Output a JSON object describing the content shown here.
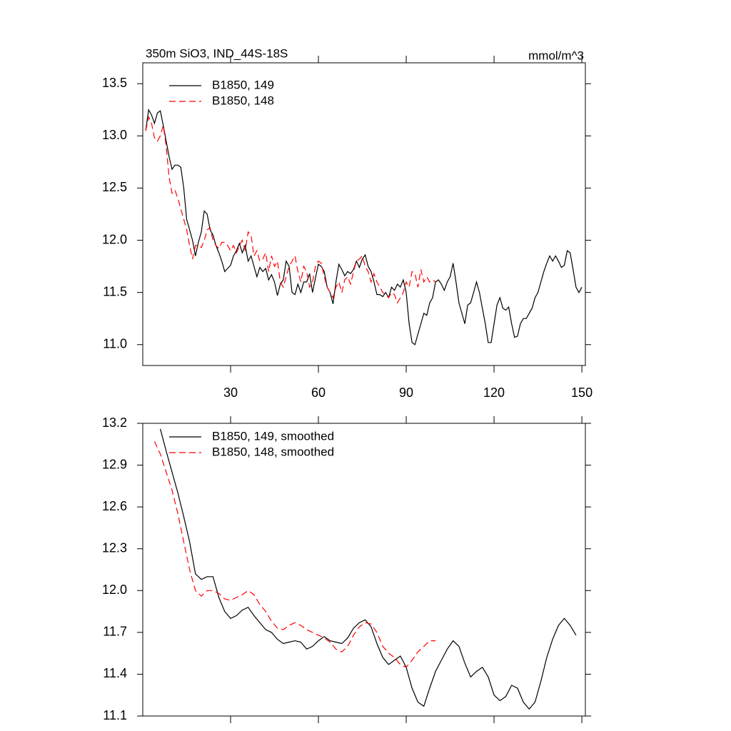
{
  "chart_data": [
    {
      "type": "line",
      "title": "350m SiO3, IND_44S-18S",
      "units": "mmol/m^3",
      "x": [
        1,
        2,
        3,
        4,
        5,
        6,
        7,
        8,
        9,
        10,
        11,
        12,
        13,
        14,
        15,
        16,
        17,
        18,
        19,
        20,
        21,
        22,
        23,
        24,
        25,
        26,
        27,
        28,
        29,
        30,
        31,
        32,
        33,
        34,
        35,
        36,
        37,
        38,
        39,
        40,
        41,
        42,
        43,
        44,
        45,
        46,
        47,
        48,
        49,
        50,
        51,
        52,
        53,
        54,
        55,
        56,
        57,
        58,
        59,
        60,
        61,
        62,
        63,
        64,
        65,
        66,
        67,
        68,
        69,
        70,
        71,
        72,
        73,
        74,
        75,
        76,
        77,
        78,
        79,
        80,
        81,
        82,
        83,
        84,
        85,
        86,
        87,
        88,
        89,
        90,
        91,
        92,
        93,
        94,
        95,
        96,
        97,
        98,
        99,
        100,
        101,
        102,
        103,
        104,
        105,
        106,
        107,
        108,
        109,
        110,
        111,
        112,
        113,
        114,
        115,
        116,
        117,
        118,
        119,
        120,
        121,
        122,
        123,
        124,
        125,
        126,
        127,
        128,
        129,
        130,
        131,
        132,
        133,
        134,
        135,
        136,
        137,
        138,
        139,
        140,
        141,
        142,
        143,
        144,
        145,
        146,
        147,
        148,
        149,
        150
      ],
      "series": [
        {
          "name": "B1850, 149",
          "color": "#000000",
          "dash": false,
          "values": [
            13.05,
            13.25,
            13.2,
            13.12,
            13.22,
            13.24,
            13.1,
            12.95,
            12.8,
            12.68,
            12.72,
            12.72,
            12.7,
            12.5,
            12.2,
            12.1,
            12.0,
            11.85,
            11.98,
            12.08,
            12.28,
            12.25,
            12.1,
            12.05,
            11.95,
            11.88,
            11.8,
            11.7,
            11.73,
            11.76,
            11.85,
            11.9,
            11.97,
            11.88,
            11.95,
            11.8,
            11.85,
            11.75,
            11.65,
            11.74,
            11.7,
            11.73,
            11.62,
            11.67,
            11.6,
            11.47,
            11.58,
            11.62,
            11.8,
            11.75,
            11.5,
            11.48,
            11.58,
            11.5,
            11.6,
            11.6,
            11.68,
            11.5,
            11.64,
            11.77,
            11.75,
            11.7,
            11.55,
            11.5,
            11.39,
            11.6,
            11.77,
            11.72,
            11.66,
            11.7,
            11.68,
            11.72,
            11.8,
            11.74,
            11.82,
            11.86,
            11.75,
            11.7,
            11.6,
            11.48,
            11.48,
            11.46,
            11.5,
            11.45,
            11.55,
            11.52,
            11.58,
            11.55,
            11.62,
            11.5,
            11.2,
            11.02,
            11.0,
            11.1,
            11.2,
            11.3,
            11.28,
            11.4,
            11.45,
            11.6,
            11.62,
            11.58,
            11.52,
            11.6,
            11.65,
            11.78,
            11.6,
            11.4,
            11.3,
            11.2,
            11.38,
            11.4,
            11.5,
            11.6,
            11.5,
            11.35,
            11.2,
            11.02,
            11.02,
            11.2,
            11.38,
            11.45,
            11.35,
            11.33,
            11.36,
            11.2,
            11.07,
            11.08,
            11.2,
            11.25,
            11.25,
            11.3,
            11.35,
            11.45,
            11.5,
            11.6,
            11.7,
            11.78,
            11.85,
            11.8,
            11.85,
            11.8,
            11.74,
            11.76,
            11.9,
            11.88,
            11.72,
            11.55,
            11.5,
            11.55
          ]
        },
        {
          "name": "B1850, 148",
          "color": "#ff0000",
          "dash": true,
          "values": [
            13.05,
            13.18,
            13.12,
            12.98,
            12.95,
            13.0,
            13.1,
            12.9,
            12.6,
            12.45,
            12.48,
            12.4,
            12.3,
            12.2,
            12.1,
            11.95,
            11.82,
            11.95,
            11.95,
            11.93,
            12.0,
            12.1,
            12.12,
            12.0,
            11.95,
            11.92,
            11.98,
            11.98,
            11.95,
            11.9,
            11.95,
            11.88,
            11.95,
            12.0,
            11.9,
            12.08,
            12.05,
            11.85,
            11.9,
            11.8,
            11.82,
            11.88,
            11.7,
            11.85,
            11.75,
            11.8,
            11.6,
            11.55,
            11.65,
            11.75,
            11.8,
            11.85,
            11.7,
            11.6,
            11.75,
            11.7,
            11.55,
            11.6,
            11.75,
            11.8,
            11.78,
            11.65,
            11.55,
            11.5,
            11.45,
            11.55,
            11.6,
            11.5,
            11.62,
            11.65,
            11.58,
            11.7,
            11.8,
            11.82,
            11.85,
            11.75,
            11.7,
            11.6,
            11.68,
            11.6,
            11.55,
            11.5,
            11.48,
            11.45,
            11.5,
            11.48,
            11.4,
            11.45,
            11.5,
            11.6,
            11.55,
            11.7,
            11.68,
            11.55,
            11.72,
            11.6,
            11.65,
            11.6,
            11.62,
            11.6,
            null,
            null,
            null,
            null,
            null,
            null,
            null,
            null,
            null,
            null,
            null,
            null,
            null,
            null,
            null,
            null,
            null,
            null,
            null,
            null,
            null,
            null,
            null,
            null,
            null,
            null,
            null,
            null,
            null,
            null,
            null,
            null,
            null,
            null,
            null,
            null,
            null,
            null,
            null,
            null,
            null,
            null,
            null,
            null,
            null,
            null,
            null,
            null,
            null,
            null
          ]
        }
      ],
      "xlim": [
        0,
        151.2
      ],
      "xticks": [
        30,
        60,
        90,
        120,
        150
      ],
      "xtick_labels": true,
      "ylim": [
        10.8,
        13.7
      ],
      "yticks": [
        {
          "value": 11,
          "label": "11.0"
        },
        11.5,
        {
          "value": 12,
          "label": "12.0"
        },
        12.5,
        {
          "value": 13,
          "label": "13.0"
        },
        13.5
      ]
    },
    {
      "type": "line",
      "x": [
        4,
        6,
        8,
        10,
        12,
        14,
        16,
        18,
        20,
        22,
        24,
        26,
        28,
        30,
        32,
        34,
        36,
        38,
        40,
        42,
        44,
        46,
        48,
        50,
        52,
        54,
        56,
        58,
        60,
        62,
        64,
        66,
        68,
        70,
        72,
        74,
        76,
        78,
        80,
        82,
        84,
        86,
        88,
        90,
        92,
        94,
        96,
        98,
        100,
        102,
        104,
        106,
        108,
        110,
        112,
        114,
        116,
        118,
        120,
        122,
        124,
        126,
        128,
        130,
        132,
        134,
        136,
        138,
        140,
        142,
        144,
        146,
        148
      ],
      "series": [
        {
          "name": "B1850, 149, smoothed",
          "color": "#000000",
          "dash": false,
          "values": [
            null,
            13.16,
            13.0,
            12.85,
            12.7,
            12.53,
            12.35,
            12.12,
            12.08,
            12.1,
            12.1,
            11.95,
            11.85,
            11.8,
            11.82,
            11.86,
            11.88,
            11.82,
            11.77,
            11.72,
            11.7,
            11.65,
            11.62,
            11.63,
            11.64,
            11.63,
            11.58,
            11.6,
            11.64,
            11.67,
            11.64,
            11.63,
            11.62,
            11.66,
            11.73,
            11.77,
            11.79,
            11.74,
            11.62,
            11.52,
            11.47,
            11.5,
            11.53,
            11.45,
            11.3,
            11.2,
            11.17,
            11.3,
            11.42,
            11.5,
            11.58,
            11.64,
            11.6,
            11.48,
            11.38,
            11.42,
            11.45,
            11.38,
            11.25,
            11.21,
            11.24,
            11.32,
            11.3,
            11.2,
            11.15,
            11.2,
            11.35,
            11.52,
            11.65,
            11.75,
            11.8,
            11.75,
            11.68
          ]
        },
        {
          "name": "B1850, 148, smoothed",
          "color": "#ff0000",
          "dash": true,
          "values": [
            13.07,
            12.98,
            12.85,
            12.72,
            12.55,
            12.35,
            12.15,
            12.0,
            11.96,
            12.0,
            12.0,
            11.98,
            11.94,
            11.93,
            11.95,
            11.97,
            12.0,
            11.97,
            11.9,
            11.85,
            11.78,
            11.73,
            11.72,
            11.75,
            11.77,
            11.75,
            11.72,
            11.7,
            11.68,
            11.66,
            11.63,
            11.58,
            11.56,
            11.6,
            11.68,
            11.74,
            11.77,
            11.76,
            11.7,
            11.6,
            11.55,
            11.52,
            11.47,
            11.45,
            11.5,
            11.56,
            11.6,
            11.64,
            11.64,
            null,
            null,
            null,
            null,
            null,
            null,
            null,
            null,
            null,
            null,
            null,
            null,
            null,
            null,
            null,
            null,
            null,
            null,
            null,
            null,
            null,
            null,
            null,
            null
          ]
        }
      ],
      "xlim": [
        0,
        151.2
      ],
      "xticks": [
        30,
        60,
        90,
        120,
        150
      ],
      "xtick_labels": false,
      "ylim": [
        11.1,
        13.2
      ],
      "yticks": [
        11.1,
        11.4,
        11.7,
        {
          "value": 12,
          "label": "12.0"
        },
        12.3,
        12.6,
        12.9,
        13.2
      ]
    }
  ]
}
